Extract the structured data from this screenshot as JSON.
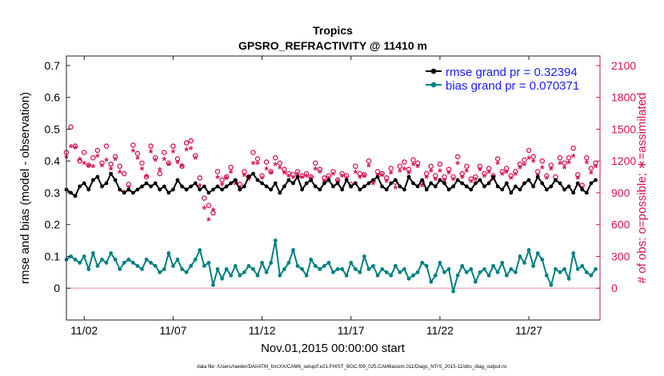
{
  "chart_data": {
    "type": "line",
    "title": "Tropics",
    "subtitle": "GPSRO_REFRACTIVITY @ 11410 m",
    "xlabel": "Nov.01,2015 00:00:00 start",
    "ylabel": "rmse and bias (model - observation)",
    "y2label": "# of obs: o=possible; ∗=assimilated",
    "footnote": "data file: /Users/raeder/DAI/ATM_forcXX/CAM6_setup/f.e21.FHIST_BGC.f09_025.CAM6assim.011/Diags_NTrS_2015-11/obs_diag_output.nc",
    "xlim": [
      0.5,
      30.5
    ],
    "ylim": [
      -0.1,
      0.73
    ],
    "y2lim": [
      -300,
      2190
    ],
    "x_ticks": [
      1.5,
      6.5,
      11.5,
      16.5,
      21.5,
      26.5
    ],
    "x_tick_labels": [
      "11/02",
      "11/07",
      "11/12",
      "11/17",
      "11/22",
      "11/27"
    ],
    "y_ticks": [
      0,
      0.1,
      0.2,
      0.3,
      0.4,
      0.5,
      0.6,
      0.7
    ],
    "y_tick_labels": [
      "0",
      "0.1",
      "0.2",
      "0.3",
      "0.4",
      "0.5",
      "0.6",
      "0.7"
    ],
    "y2_ticks": [
      0,
      300,
      600,
      900,
      1200,
      1500,
      1800,
      2100
    ],
    "y2_tick_labels": [
      "0",
      "300",
      "600",
      "900",
      "1200",
      "1500",
      "1800",
      "2100"
    ],
    "legend": [
      {
        "label": "rmse grand pr = 0.32394",
        "color": "#000000"
      },
      {
        "label": "bias grand pr = 0.070371",
        "color": "#008080"
      }
    ],
    "colors": {
      "rmse": "#000000",
      "bias": "#008080",
      "obs": "#d6124d",
      "legend_text": "#1a1aff"
    },
    "series": [
      {
        "name": "rmse",
        "x": [
          0.5,
          0.75,
          1.0,
          1.25,
          1.5,
          1.75,
          2.0,
          2.25,
          2.5,
          2.75,
          3.0,
          3.25,
          3.5,
          3.75,
          4.0,
          4.25,
          4.5,
          4.75,
          5.0,
          5.25,
          5.5,
          5.75,
          6.0,
          6.25,
          6.5,
          6.75,
          7.0,
          7.25,
          7.5,
          7.75,
          8.0,
          8.25,
          8.5,
          8.75,
          9.0,
          9.25,
          9.5,
          9.75,
          10.0,
          10.25,
          10.5,
          10.75,
          11.0,
          11.25,
          11.5,
          11.75,
          12.0,
          12.25,
          12.5,
          12.75,
          13.0,
          13.25,
          13.5,
          13.75,
          14.0,
          14.25,
          14.5,
          14.75,
          15.0,
          15.25,
          15.5,
          15.75,
          16.0,
          16.25,
          16.5,
          16.75,
          17.0,
          17.25,
          17.5,
          17.75,
          18.0,
          18.25,
          18.5,
          18.75,
          19.0,
          19.25,
          19.5,
          19.75,
          20.0,
          20.25,
          20.5,
          20.75,
          21.0,
          21.25,
          21.5,
          21.75,
          22.0,
          22.25,
          22.5,
          22.75,
          23.0,
          23.25,
          23.5,
          23.75,
          24.0,
          24.25,
          24.5,
          24.75,
          25.0,
          25.25,
          25.5,
          25.75,
          26.0,
          26.25,
          26.5,
          26.75,
          27.0,
          27.25,
          27.5,
          27.75,
          28.0,
          28.25,
          28.5,
          28.75,
          29.0,
          29.25,
          29.5,
          29.75,
          30.0,
          30.25
        ],
        "values": [
          0.31,
          0.3,
          0.29,
          0.32,
          0.33,
          0.31,
          0.34,
          0.35,
          0.32,
          0.33,
          0.36,
          0.34,
          0.31,
          0.3,
          0.31,
          0.3,
          0.31,
          0.32,
          0.33,
          0.32,
          0.33,
          0.31,
          0.32,
          0.3,
          0.31,
          0.34,
          0.32,
          0.31,
          0.32,
          0.33,
          0.31,
          0.32,
          0.3,
          0.31,
          0.32,
          0.31,
          0.32,
          0.33,
          0.34,
          0.31,
          0.32,
          0.35,
          0.36,
          0.34,
          0.33,
          0.32,
          0.31,
          0.33,
          0.3,
          0.32,
          0.34,
          0.33,
          0.35,
          0.31,
          0.33,
          0.34,
          0.32,
          0.31,
          0.33,
          0.34,
          0.32,
          0.33,
          0.31,
          0.34,
          0.32,
          0.33,
          0.31,
          0.32,
          0.33,
          0.34,
          0.35,
          0.32,
          0.31,
          0.33,
          0.34,
          0.32,
          0.31,
          0.35,
          0.33,
          0.32,
          0.34,
          0.31,
          0.33,
          0.32,
          0.34,
          0.33,
          0.31,
          0.32,
          0.34,
          0.33,
          0.32,
          0.31,
          0.33,
          0.34,
          0.32,
          0.33,
          0.35,
          0.32,
          0.31,
          0.33,
          0.3,
          0.32,
          0.31,
          0.33,
          0.34,
          0.32,
          0.35,
          0.33,
          0.31,
          0.32,
          0.34,
          0.33,
          0.31,
          0.32,
          0.3,
          0.33,
          0.31,
          0.3,
          0.33,
          0.34
        ]
      },
      {
        "name": "bias",
        "x": [
          0.5,
          0.75,
          1.0,
          1.25,
          1.5,
          1.75,
          2.0,
          2.25,
          2.5,
          2.75,
          3.0,
          3.25,
          3.5,
          3.75,
          4.0,
          4.25,
          4.5,
          4.75,
          5.0,
          5.25,
          5.5,
          5.75,
          6.0,
          6.25,
          6.5,
          6.75,
          7.0,
          7.25,
          7.5,
          7.75,
          8.0,
          8.25,
          8.5,
          8.75,
          9.0,
          9.25,
          9.5,
          9.75,
          10.0,
          10.25,
          10.5,
          10.75,
          11.0,
          11.25,
          11.5,
          11.75,
          12.0,
          12.25,
          12.5,
          12.75,
          13.0,
          13.25,
          13.5,
          13.75,
          14.0,
          14.25,
          14.5,
          14.75,
          15.0,
          15.25,
          15.5,
          15.75,
          16.0,
          16.25,
          16.5,
          16.75,
          17.0,
          17.25,
          17.5,
          17.75,
          18.0,
          18.25,
          18.5,
          18.75,
          19.0,
          19.25,
          19.5,
          19.75,
          20.0,
          20.25,
          20.5,
          20.75,
          21.0,
          21.25,
          21.5,
          21.75,
          22.0,
          22.25,
          22.5,
          22.75,
          23.0,
          23.25,
          23.5,
          23.75,
          24.0,
          24.25,
          24.5,
          24.75,
          25.0,
          25.25,
          25.5,
          25.75,
          26.0,
          26.25,
          26.5,
          26.75,
          27.0,
          27.25,
          27.5,
          27.75,
          28.0,
          28.25,
          28.5,
          28.75,
          29.0,
          29.25,
          29.5,
          29.75,
          30.0,
          30.25
        ],
        "values": [
          0.09,
          0.1,
          0.09,
          0.08,
          0.1,
          0.06,
          0.11,
          0.07,
          0.09,
          0.08,
          0.11,
          0.09,
          0.06,
          0.08,
          0.09,
          0.08,
          0.07,
          0.06,
          0.09,
          0.08,
          0.07,
          0.05,
          0.06,
          0.11,
          0.07,
          0.09,
          0.06,
          0.05,
          0.07,
          0.09,
          0.12,
          0.07,
          0.08,
          0.01,
          0.06,
          0.03,
          0.06,
          0.04,
          0.07,
          0.04,
          0.05,
          0.07,
          0.06,
          0.04,
          0.08,
          0.05,
          0.08,
          0.15,
          0.04,
          0.06,
          0.08,
          0.12,
          0.07,
          0.06,
          0.04,
          0.09,
          0.07,
          0.06,
          0.07,
          0.08,
          0.05,
          0.06,
          0.06,
          0.04,
          0.08,
          0.06,
          0.05,
          0.1,
          0.06,
          0.07,
          0.04,
          0.06,
          0.05,
          0.04,
          0.07,
          0.05,
          0.06,
          0.03,
          0.04,
          0.05,
          0.08,
          0.07,
          0.02,
          0.04,
          0.08,
          0.05,
          0.06,
          -0.01,
          0.04,
          0.07,
          0.05,
          0.06,
          0.02,
          0.05,
          0.06,
          0.04,
          0.07,
          0.05,
          0.08,
          0.04,
          0.06,
          0.05,
          0.1,
          0.08,
          0.12,
          0.07,
          0.11,
          0.09,
          0.04,
          0.01,
          0.06,
          0.05,
          0.06,
          0.03,
          0.11,
          0.06,
          0.07,
          0.05,
          0.04,
          0.06
        ]
      },
      {
        "name": "# possible obs",
        "marker": "o",
        "x": [
          0.5,
          0.75,
          1.0,
          1.25,
          1.5,
          1.75,
          2.0,
          2.25,
          2.5,
          2.75,
          3.0,
          3.25,
          3.5,
          3.75,
          4.0,
          4.25,
          4.5,
          4.75,
          5.0,
          5.25,
          5.5,
          5.75,
          6.0,
          6.25,
          6.5,
          6.75,
          7.0,
          7.25,
          7.5,
          7.75,
          8.0,
          8.25,
          8.5,
          8.75,
          9.0,
          9.25,
          9.5,
          9.75,
          10.0,
          10.25,
          10.5,
          10.75,
          11.0,
          11.25,
          11.5,
          11.75,
          12.0,
          12.25,
          12.5,
          12.75,
          13.0,
          13.25,
          13.5,
          13.75,
          14.0,
          14.25,
          14.5,
          14.75,
          15.0,
          15.25,
          15.5,
          15.75,
          16.0,
          16.25,
          16.5,
          16.75,
          17.0,
          17.25,
          17.5,
          17.75,
          18.0,
          18.25,
          18.5,
          18.75,
          19.0,
          19.25,
          19.5,
          19.75,
          20.0,
          20.25,
          20.5,
          20.75,
          21.0,
          21.25,
          21.5,
          21.75,
          22.0,
          22.25,
          22.5,
          22.75,
          23.0,
          23.25,
          23.5,
          23.75,
          24.0,
          24.25,
          24.5,
          24.75,
          25.0,
          25.25,
          25.5,
          25.75,
          26.0,
          26.25,
          26.5,
          26.75,
          27.0,
          27.25,
          27.5,
          27.75,
          28.0,
          28.25,
          28.5,
          28.75,
          29.0,
          29.25,
          29.5,
          29.75,
          30.0,
          30.25
        ],
        "values": [
          1280,
          1520,
          1340,
          1200,
          1280,
          1160,
          1230,
          1300,
          1180,
          1340,
          1170,
          1240,
          1150,
          1080,
          980,
          1350,
          1270,
          1180,
          1050,
          1340,
          1230,
          1080,
          1280,
          1180,
          1340,
          1220,
          1150,
          1370,
          1390,
          1250,
          1040,
          850,
          780,
          710,
          1100,
          1020,
          1050,
          1140,
          1010,
          980,
          1100,
          1050,
          1280,
          1220,
          1060,
          1190,
          1100,
          1230,
          1180,
          1120,
          1080,
          1070,
          1100,
          1060,
          1080,
          1050,
          1180,
          1120,
          1040,
          1060,
          1100,
          1020,
          1080,
          1060,
          980,
          1150,
          1080,
          1070,
          1200,
          1010,
          1100,
          1080,
          1040,
          1130,
          1000,
          1150,
          1190,
          1120,
          1210,
          1180,
          1000,
          1080,
          1150,
          1060,
          1170,
          1050,
          1120,
          1050,
          1240,
          1080,
          1150,
          1030,
          1050,
          1150,
          1080,
          1130,
          1060,
          1220,
          1100,
          1130,
          1060,
          1100,
          1170,
          1210,
          1300,
          1240,
          1100,
          1200,
          1060,
          1160,
          1050,
          1230,
          1180,
          1230,
          1320,
          1070,
          970,
          1230,
          1130,
          1180
        ]
      },
      {
        "name": "# assimilated obs",
        "marker": "*",
        "x": [
          0.5,
          0.75,
          1.0,
          1.25,
          1.5,
          1.75,
          2.0,
          2.25,
          2.5,
          2.75,
          3.0,
          3.25,
          3.5,
          3.75,
          4.0,
          4.25,
          4.5,
          4.75,
          5.0,
          5.25,
          5.5,
          5.75,
          6.0,
          6.25,
          6.5,
          6.75,
          7.0,
          7.25,
          7.5,
          7.75,
          8.0,
          8.25,
          8.5,
          8.75,
          9.0,
          9.25,
          9.5,
          9.75,
          10.0,
          10.25,
          10.5,
          10.75,
          11.0,
          11.25,
          11.5,
          11.75,
          12.0,
          12.25,
          12.5,
          12.75,
          13.0,
          13.25,
          13.5,
          13.75,
          14.0,
          14.25,
          14.5,
          14.75,
          15.0,
          15.25,
          15.5,
          15.75,
          16.0,
          16.25,
          16.5,
          16.75,
          17.0,
          17.25,
          17.5,
          17.75,
          18.0,
          18.25,
          18.5,
          18.75,
          19.0,
          19.25,
          19.5,
          19.75,
          20.0,
          20.25,
          20.5,
          20.75,
          21.0,
          21.25,
          21.5,
          21.75,
          22.0,
          22.25,
          22.5,
          22.75,
          23.0,
          23.25,
          23.5,
          23.75,
          24.0,
          24.25,
          24.5,
          24.75,
          25.0,
          25.25,
          25.5,
          25.75,
          26.0,
          26.25,
          26.5,
          26.75,
          27.0,
          27.25,
          27.5,
          27.75,
          28.0,
          28.25,
          28.5,
          28.75,
          29.0,
          29.25,
          29.5,
          29.75,
          30.0,
          30.25
        ],
        "values": [
          1230,
          1330,
          1320,
          1210,
          1170,
          1150,
          1140,
          1240,
          1150,
          1200,
          1120,
          1210,
          1090,
          900,
          940,
          1290,
          1220,
          1120,
          1050,
          1280,
          1200,
          1110,
          1210,
          1160,
          1280,
          1180,
          1150,
          1300,
          1310,
          1220,
          960,
          750,
          640,
          730,
          1040,
          970,
          1030,
          1090,
          980,
          940,
          1060,
          1020,
          1170,
          1170,
          1030,
          1120,
          1080,
          1160,
          1130,
          1080,
          1050,
          1040,
          1070,
          1040,
          1050,
          1030,
          1120,
          1090,
          1000,
          1030,
          1070,
          1000,
          1050,
          1030,
          950,
          1090,
          1040,
          1050,
          1150,
          980,
          1060,
          1060,
          1000,
          1080,
          940,
          1100,
          1120,
          1080,
          1160,
          1140,
          960,
          1040,
          1100,
          1020,
          1100,
          1010,
          1080,
          1020,
          1170,
          1040,
          1100,
          1000,
          1020,
          1110,
          1050,
          1090,
          1020,
          1170,
          1070,
          1090,
          1030,
          1070,
          1130,
          1160,
          1220,
          1190,
          1060,
          1130,
          1030,
          1120,
          1010,
          1170,
          1130,
          1180,
          1240,
          1030,
          940,
          1180,
          1080,
          1140
        ]
      }
    ]
  }
}
